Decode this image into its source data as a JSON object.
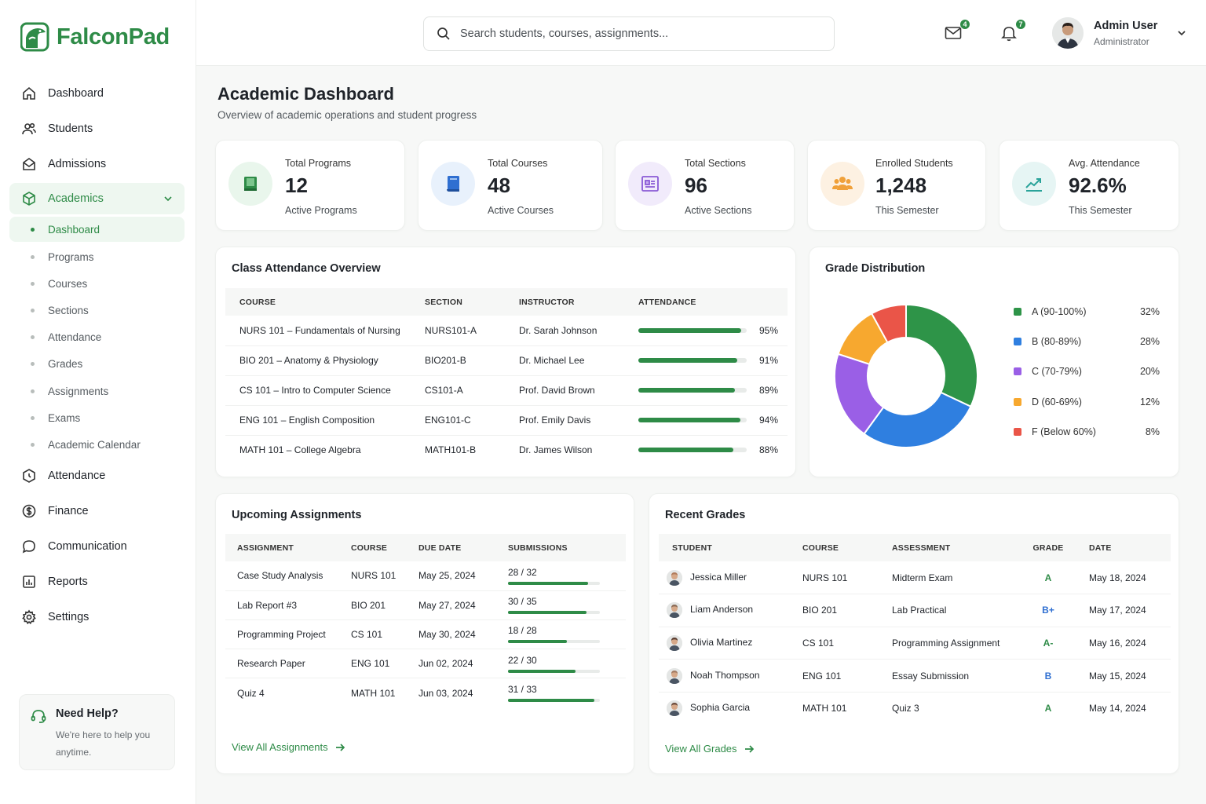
{
  "brand": {
    "name": "FalconPad",
    "color": "#2e8b47"
  },
  "sidebar": {
    "items": [
      {
        "label": "Dashboard",
        "icon": "home-icon"
      },
      {
        "label": "Students",
        "icon": "users-icon"
      },
      {
        "label": "Admissions",
        "icon": "envelope-open-icon"
      },
      {
        "label": "Academics",
        "icon": "cube-icon"
      },
      {
        "label": "Attendance",
        "icon": "clock-icon"
      },
      {
        "label": "Finance",
        "icon": "dollar-circle-icon"
      },
      {
        "label": "Communication",
        "icon": "chat-icon"
      },
      {
        "label": "Reports",
        "icon": "chart-icon"
      },
      {
        "label": "Settings",
        "icon": "gear-icon"
      }
    ],
    "academics_sub": [
      "Dashboard",
      "Programs",
      "Courses",
      "Sections",
      "Attendance",
      "Grades",
      "Assignments",
      "Exams",
      "Academic Calendar"
    ],
    "help": {
      "title": "Need Help?",
      "text": "We're here to help you anytime."
    }
  },
  "header": {
    "search_placeholder": "Search students, courses, assignments...",
    "mail_count": "4",
    "notif_count": "7",
    "user_name": "Admin User",
    "user_role": "Administrator"
  },
  "page": {
    "title": "Academic Dashboard",
    "subtitle": "Overview of academic operations and student progress"
  },
  "stats": [
    {
      "label": "Total Programs",
      "value": "12",
      "sub": "Active Programs",
      "icon": "book-icon",
      "bg": "#e9f6ec",
      "fg": "#2e8b47"
    },
    {
      "label": "Total Courses",
      "value": "48",
      "sub": "Active Courses",
      "icon": "book-open-icon",
      "bg": "#e8f1fc",
      "fg": "#2f6fd1"
    },
    {
      "label": "Total Sections",
      "value": "96",
      "sub": "Active Sections",
      "icon": "layout-icon",
      "bg": "#f1ebfb",
      "fg": "#8a5bd6"
    },
    {
      "label": "Enrolled Students",
      "value": "1,248",
      "sub": "This Semester",
      "icon": "group-icon",
      "bg": "#fdf1e2",
      "fg": "#f0a13a"
    },
    {
      "label": "Avg. Attendance",
      "value": "92.6%",
      "sub": "This Semester",
      "icon": "trend-icon",
      "bg": "#e6f5f4",
      "fg": "#2aa39a"
    }
  ],
  "attendance": {
    "title": "Class Attendance Overview",
    "headers": [
      "COURSE",
      "SECTION",
      "INSTRUCTOR",
      "ATTENDANCE"
    ],
    "rows": [
      {
        "course": "NURS 101 – Fundamentals of Nursing",
        "section": "NURS101-A",
        "instructor": "Dr. Sarah Johnson",
        "pct": "95%",
        "value": 95
      },
      {
        "course": "BIO 201 – Anatomy & Physiology",
        "section": "BIO201-B",
        "instructor": "Dr. Michael Lee",
        "pct": "91%",
        "value": 91
      },
      {
        "course": "CS 101 – Intro to Computer Science",
        "section": "CS101-A",
        "instructor": "Prof. David Brown",
        "pct": "89%",
        "value": 89
      },
      {
        "course": "ENG 101 – English Composition",
        "section": "ENG101-C",
        "instructor": "Prof. Emily Davis",
        "pct": "94%",
        "value": 94
      },
      {
        "course": "MATH 101 – College Algebra",
        "section": "MATH101-B",
        "instructor": "Dr. James Wilson",
        "pct": "88%",
        "value": 88
      }
    ]
  },
  "grades_dist": {
    "title": "Grade Distribution",
    "slices": [
      {
        "label": "A (90-100%)",
        "pct": "32%",
        "value": 32,
        "color": "#2e9448"
      },
      {
        "label": "B (80-89%)",
        "pct": "28%",
        "value": 28,
        "color": "#2f7fe0"
      },
      {
        "label": "C (70-79%)",
        "pct": "20%",
        "value": 20,
        "color": "#9a5fe6"
      },
      {
        "label": "D (60-69%)",
        "pct": "12%",
        "value": 12,
        "color": "#f7a82f"
      },
      {
        "label": "F (Below 60%)",
        "pct": "8%",
        "value": 8,
        "color": "#ea5548"
      }
    ]
  },
  "assignments": {
    "title": "Upcoming Assignments",
    "headers": [
      "ASSIGNMENT",
      "COURSE",
      "DUE DATE",
      "SUBMISSIONS"
    ],
    "rows": [
      {
        "name": "Case Study Analysis",
        "course": "NURS 101",
        "due": "May 25, 2024",
        "subs": "28 / 32",
        "done": 28,
        "total": 32
      },
      {
        "name": "Lab Report #3",
        "course": "BIO 201",
        "due": "May 27, 2024",
        "subs": "30 / 35",
        "done": 30,
        "total": 35
      },
      {
        "name": "Programming Project",
        "course": "CS 101",
        "due": "May 30, 2024",
        "subs": "18 / 28",
        "done": 18,
        "total": 28
      },
      {
        "name": "Research Paper",
        "course": "ENG 101",
        "due": "Jun 02, 2024",
        "subs": "22 / 30",
        "done": 22,
        "total": 30
      },
      {
        "name": "Quiz 4",
        "course": "MATH 101",
        "due": "Jun 03, 2024",
        "subs": "31 / 33",
        "done": 31,
        "total": 33
      }
    ],
    "link": "View All Assignments"
  },
  "recent": {
    "title": "Recent Grades",
    "headers": [
      "STUDENT",
      "COURSE",
      "ASSESSMENT",
      "GRADE",
      "DATE"
    ],
    "rows": [
      {
        "student": "Jessica Miller",
        "course": "NURS 101",
        "assessment": "Midterm Exam",
        "grade": "A",
        "color": "#2e8b47",
        "date": "May 18, 2024"
      },
      {
        "student": "Liam Anderson",
        "course": "BIO 201",
        "assessment": "Lab Practical",
        "grade": "B+",
        "color": "#2f6fd1",
        "date": "May 17, 2024"
      },
      {
        "student": "Olivia Martinez",
        "course": "CS 101",
        "assessment": "Programming Assignment",
        "grade": "A-",
        "color": "#2e8b47",
        "date": "May 16, 2024"
      },
      {
        "student": "Noah Thompson",
        "course": "ENG 101",
        "assessment": "Essay Submission",
        "grade": "B",
        "color": "#2f6fd1",
        "date": "May 15, 2024"
      },
      {
        "student": "Sophia Garcia",
        "course": "MATH 101",
        "assessment": "Quiz 3",
        "grade": "A",
        "color": "#2e8b47",
        "date": "May 14, 2024"
      }
    ],
    "link": "View All Grades"
  }
}
